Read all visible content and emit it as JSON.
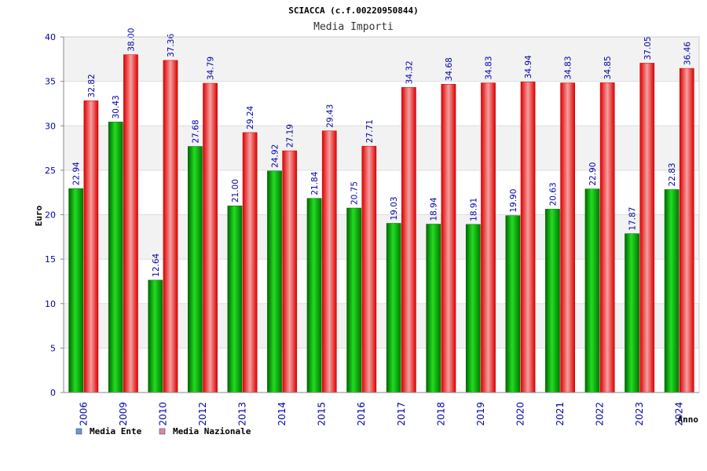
{
  "chart_data": {
    "type": "bar",
    "title": "SCIACCA (c.f.00220950844)",
    "subtitle": "Media Importi",
    "ylabel": "Euro",
    "xlabel": "Anno",
    "ylim": [
      0,
      40
    ],
    "yticks": [
      "0",
      "5",
      "10",
      "15",
      "20",
      "25",
      "30",
      "35",
      "40"
    ],
    "grid": true,
    "legend_position": "bottom-left",
    "categories": [
      "2006",
      "2009",
      "2010",
      "2012",
      "2013",
      "2014",
      "2015",
      "2016",
      "2017",
      "2018",
      "2019",
      "2020",
      "2021",
      "2022",
      "2023",
      "2024"
    ],
    "series": [
      {
        "name": "Media Ente",
        "color": "#00aa00",
        "legend_color": "#6699dd",
        "values": [
          22.94,
          30.43,
          12.64,
          27.68,
          21.0,
          24.92,
          21.84,
          20.75,
          19.03,
          18.94,
          18.91,
          19.9,
          20.63,
          22.9,
          17.87,
          22.83
        ],
        "labels": [
          "22.94",
          "30.43",
          "12.64",
          "27.68",
          "21.00",
          "24.92",
          "21.84",
          "20.75",
          "19.03",
          "18.94",
          "18.91",
          "19.90",
          "20.63",
          "22.90",
          "17.87",
          "22.83"
        ]
      },
      {
        "name": "Media Nazionale",
        "color": "#ee0000",
        "legend_color": "#dd88aa",
        "values": [
          32.82,
          38.0,
          37.36,
          34.79,
          29.24,
          27.19,
          29.43,
          27.71,
          34.32,
          34.68,
          34.83,
          34.94,
          34.83,
          34.85,
          37.05,
          36.46
        ],
        "labels": [
          "32.82",
          "38.00",
          "37.36",
          "34.79",
          "29.24",
          "27.19",
          "29.43",
          "27.71",
          "34.32",
          "34.68",
          "34.83",
          "34.94",
          "34.83",
          "34.85",
          "37.05",
          "36.46"
        ]
      }
    ]
  }
}
